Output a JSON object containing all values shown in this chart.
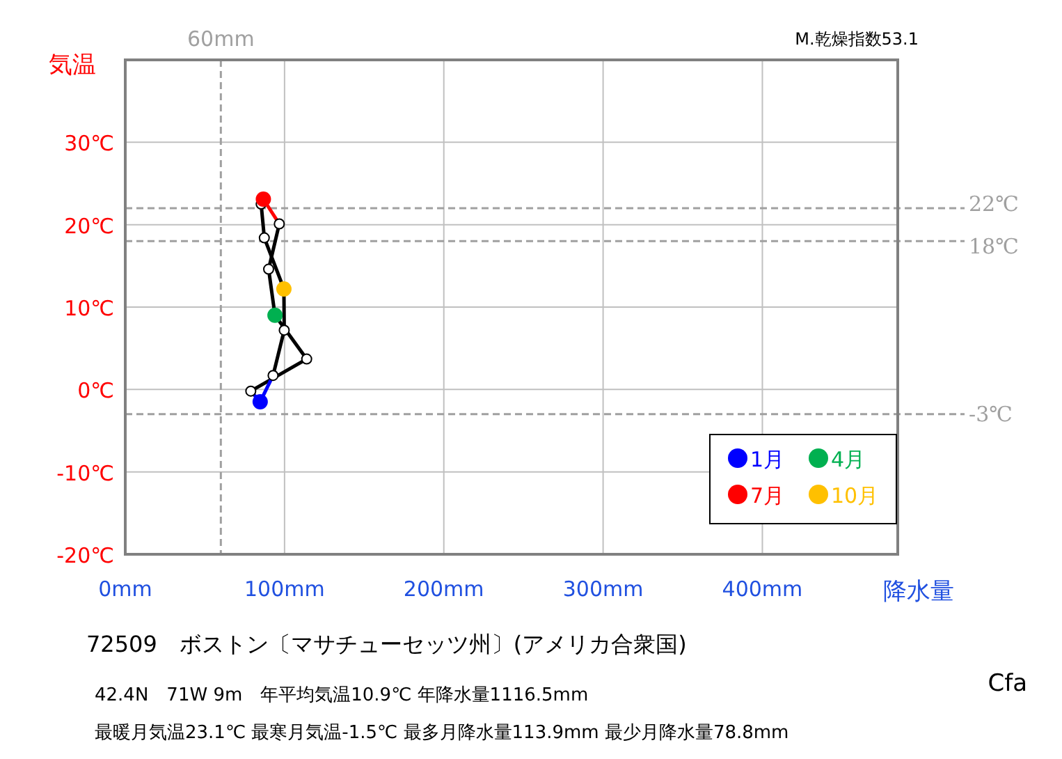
{
  "chart_data": {
    "type": "line",
    "title": "72509　ボストン〔マサチューセッツ州〕(アメリカ合衆国)",
    "ylabel": "気温",
    "xlabel": "降水量",
    "annotations": [
      "M.乾燥指数53.1",
      "42.4N　71W 9m　年平均気温10.9℃ 年降水量1116.5mm",
      "最暖月気温23.1℃ 最寒月気温-1.5℃ 最多月降水量113.9mm 最少月降水量78.8mm",
      "Cfa"
    ],
    "xlim": [
      0,
      485
    ],
    "ylim": [
      -20,
      40
    ],
    "xticks": [
      {
        "value": 0,
        "label": "0mm"
      },
      {
        "value": 100,
        "label": "100mm"
      },
      {
        "value": 200,
        "label": "200mm"
      },
      {
        "value": 300,
        "label": "300mm"
      },
      {
        "value": 400,
        "label": "400mm"
      }
    ],
    "yticks": [
      {
        "value": -20,
        "label": "-20℃"
      },
      {
        "value": -10,
        "label": "-10℃"
      },
      {
        "value": 0,
        "label": "0℃"
      },
      {
        "value": 10,
        "label": "10℃"
      },
      {
        "value": 20,
        "label": "20℃"
      },
      {
        "value": 30,
        "label": "30℃"
      }
    ],
    "grid": true,
    "legend": "bottom right",
    "ref_lines": [
      {
        "axis": "x",
        "value": 60,
        "label": "60mm",
        "color": "#a0a0a0",
        "line_style": "dashed"
      },
      {
        "axis": "y",
        "value": 22,
        "label": "22℃",
        "color": "#a0a0a0",
        "line_style": "dashed"
      },
      {
        "axis": "y",
        "value": 18,
        "label": "18℃",
        "color": "#a0a0a0",
        "line_style": "dashed"
      },
      {
        "axis": "y",
        "value": -3,
        "label": "-3℃",
        "color": "#a0a0a0",
        "line_style": "dashed"
      }
    ],
    "series": [
      {
        "color": "#0000ff",
        "x": [
          84.7,
          78.8
        ],
        "values": [
          -1.5,
          -0.2
        ]
      },
      {
        "color": "#000000",
        "x": [
          78.8,
          113.9
        ],
        "values": [
          -0.2,
          3.7
        ]
      },
      {
        "color": "#000000",
        "x": [
          113.9,
          94
        ],
        "values": [
          3.7,
          9.0
        ]
      },
      {
        "color": "#000000",
        "x": [
          94,
          90
        ],
        "values": [
          9.0,
          14.6
        ]
      },
      {
        "color": "#000000",
        "x": [
          90,
          96.7
        ],
        "values": [
          14.6,
          20.1
        ]
      },
      {
        "color": "#ff0000",
        "x": [
          96.7,
          86.7
        ],
        "values": [
          20.1,
          23.1
        ]
      },
      {
        "color": "#000000",
        "x": [
          85.3,
          87.3
        ],
        "values": [
          22.5,
          18.4
        ]
      },
      {
        "color": "#000000",
        "x": [
          87.3,
          99.6
        ],
        "values": [
          18.4,
          12.2
        ]
      },
      {
        "color": "#000000",
        "x": [
          99.6,
          99.8
        ],
        "values": [
          12.2,
          7.2
        ]
      },
      {
        "color": "#000000",
        "x": [
          99.8,
          92.8
        ],
        "values": [
          7.2,
          1.7
        ]
      },
      {
        "color": "#0000ff",
        "x": [
          92.8,
          84.7
        ],
        "values": [
          1.7,
          -1.5
        ]
      },
      {
        "type": "scatter",
        "marker": "circle",
        "color": "#ffffff",
        "x": [
          78.8,
          113.9,
          90,
          96.7,
          85.3,
          87.3,
          99.8,
          92.8
        ],
        "values": [
          -0.2,
          3.7,
          14.6,
          20.1,
          22.5,
          18.4,
          7.2,
          1.7
        ]
      },
      {
        "type": "scatter",
        "name": "1月",
        "color": "#0000ff",
        "x": [
          84.7
        ],
        "values": [
          -1.5
        ]
      },
      {
        "type": "scatter",
        "name": "4月",
        "color": "#00b050",
        "x": [
          94
        ],
        "values": [
          9.0
        ]
      },
      {
        "type": "scatter",
        "name": "7月",
        "color": "#ff0000",
        "x": [
          86.7
        ],
        "values": [
          23.1
        ]
      },
      {
        "type": "scatter",
        "name": "10月",
        "color": "#ffc000",
        "x": [
          99.6
        ],
        "values": [
          12.2
        ]
      }
    ]
  }
}
